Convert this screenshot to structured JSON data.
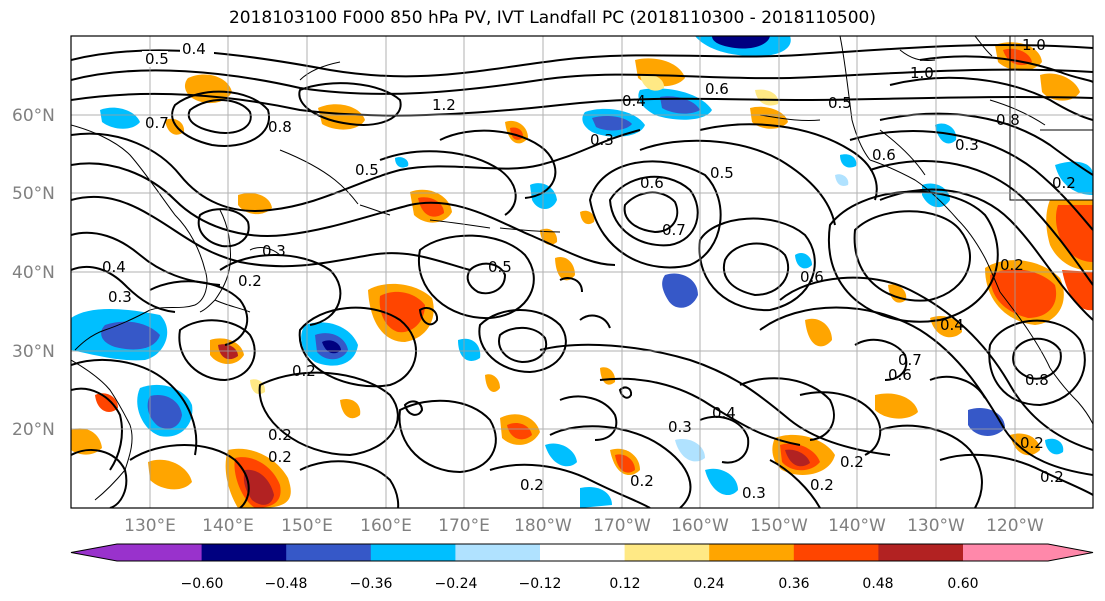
{
  "title": "2018103100 F000 850 hPa PV, IVT Landfall PC (2018110300 - 2018110500)",
  "latitude_ticks": [
    "60°N",
    "50°N",
    "40°N",
    "30°N",
    "20°N"
  ],
  "longitude_ticks": [
    "130°E",
    "140°E",
    "150°E",
    "160°E",
    "170°E",
    "180°W",
    "170°W",
    "160°W",
    "150°W",
    "140°W",
    "130°W",
    "120°W"
  ],
  "colorbar": {
    "tick_labels": [
      "−0.60",
      "−0.48",
      "−0.36",
      "−0.24",
      "−0.12",
      "0.12",
      "0.24",
      "0.36",
      "0.48",
      "0.60"
    ],
    "colors": [
      "#9932cc",
      "#000080",
      "#3658c8",
      "#00bfff",
      "#b0e2ff",
      "#ffffff",
      "#ffe985",
      "#ffa500",
      "#ff4500",
      "#b22222",
      "#ff88aa"
    ]
  },
  "contour_labels": [
    "0.5",
    "0.4",
    "0.7",
    "1.0",
    "1.2",
    "0.8",
    "0.4",
    "0.6",
    "0.3",
    "0.5",
    "0.6",
    "0.7",
    "0.5",
    "0.3",
    "0.2",
    "0.4",
    "0.5",
    "0.3",
    "0.2",
    "0.2",
    "0.6",
    "0.2",
    "0.2",
    "0.3",
    "0.4",
    "0.3",
    "0.2",
    "0.2",
    "0.2",
    "0.5",
    "0.6",
    "0.8",
    "1.0",
    "0.4",
    "0.7",
    "0.6",
    "0.8",
    "0.2",
    "0.2",
    "0.3",
    "0.2",
    "0.2"
  ],
  "colors": {
    "contour": "#000000",
    "grid": "#a0a0a0",
    "coast": "#000000"
  }
}
